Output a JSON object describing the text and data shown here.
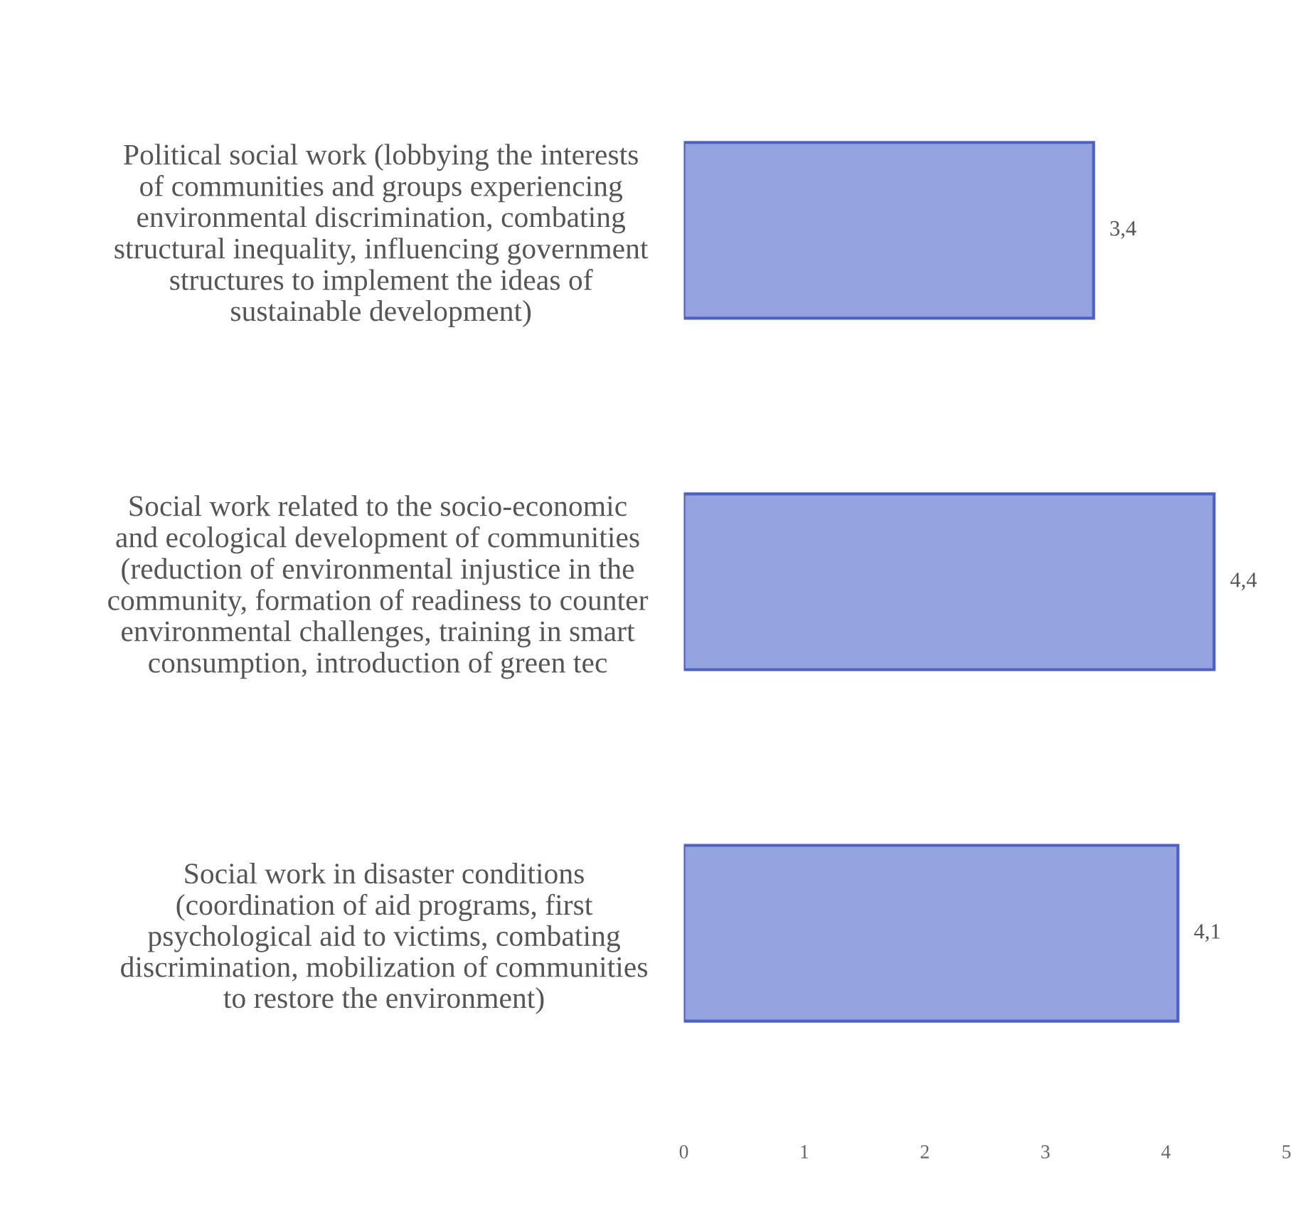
{
  "chart_data": {
    "type": "bar",
    "orientation": "horizontal",
    "categories": [
      "Political social work (lobbying the interests\nof communities and groups experiencing\nenvironmental discrimination, combating\nstructural inequality, influencing government\nstructures to implement the ideas of\nsustainable development)",
      "Social work related to the socio-economic\nand ecological development of communities\n(reduction of environmental injustice in the\ncommunity, formation of readiness to counter\nenvironmental challenges, training in smart\nconsumption, introduction of green tec",
      "Social work in disaster conditions\n(coordination of aid programs, first\npsychological aid to victims, combating\ndiscrimination, mobilization of communities\nto restore the environment)"
    ],
    "values": [
      3.4,
      4.4,
      4.1
    ],
    "value_labels": [
      "3,4",
      "4,4",
      "4,1"
    ],
    "color": "#94a3de",
    "xlim": [
      0,
      5
    ],
    "xticks": [
      0,
      1,
      2,
      3,
      4,
      5
    ],
    "grid": false,
    "legend": false
  }
}
